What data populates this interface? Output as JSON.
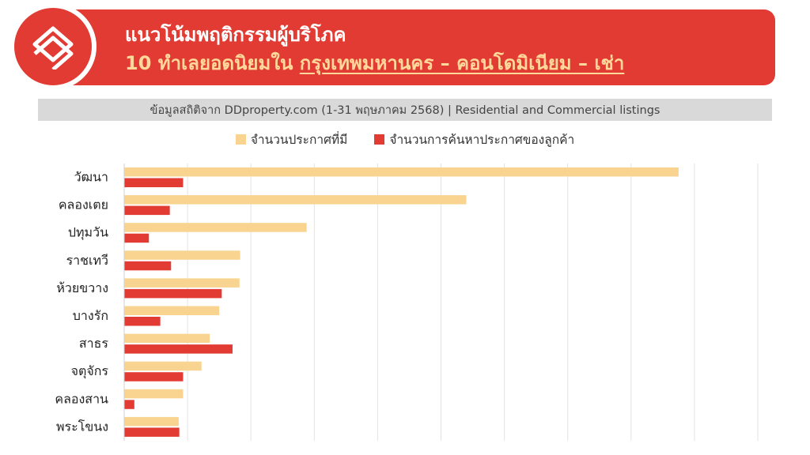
{
  "header": {
    "title_line1": "แนวโน้มพฤติกรรมผู้บริโภค",
    "title_line2_prefix": "10 ทำเลยอดนิยมใน ",
    "title_line2_highlight": "กรุงเทพมหานคร – คอนโดมิเนียม – เช่า",
    "logo_icon": "ddproperty-house-logo-icon"
  },
  "source_note": "ข้อมูลสถิติจาก DDproperty.com (1-31 พฤษภาคม 2568) | Residential and Commercial listings",
  "colors": {
    "brand_red": "#e13b33",
    "listings": "#f8d490",
    "searches": "#e13b33",
    "title_highlight": "#ffd89a"
  },
  "chart_data": {
    "type": "bar",
    "orientation": "horizontal",
    "categories": [
      "วัฒนา",
      "คลองเตย",
      "ปทุมวัน",
      "ราชเทวี",
      "ห้วยขวาง",
      "บางรัก",
      "สาธร",
      "จตุจักร",
      "คลองสาน",
      "พระโขนง"
    ],
    "series": [
      {
        "name": "จำนวนประกาศที่มี",
        "values": [
          8.75,
          5.4,
          2.88,
          1.83,
          1.82,
          1.5,
          1.35,
          1.22,
          0.93,
          0.86
        ]
      },
      {
        "name": "จำนวนการค้นหาประกาศของลูกค้า",
        "values": [
          0.93,
          0.72,
          0.39,
          0.74,
          1.54,
          0.57,
          1.71,
          0.93,
          0.16,
          0.87
        ]
      }
    ],
    "xlim": [
      0,
      10
    ],
    "grid": true,
    "legend_position": "top-center",
    "axis_tick_labels_shown": false
  }
}
